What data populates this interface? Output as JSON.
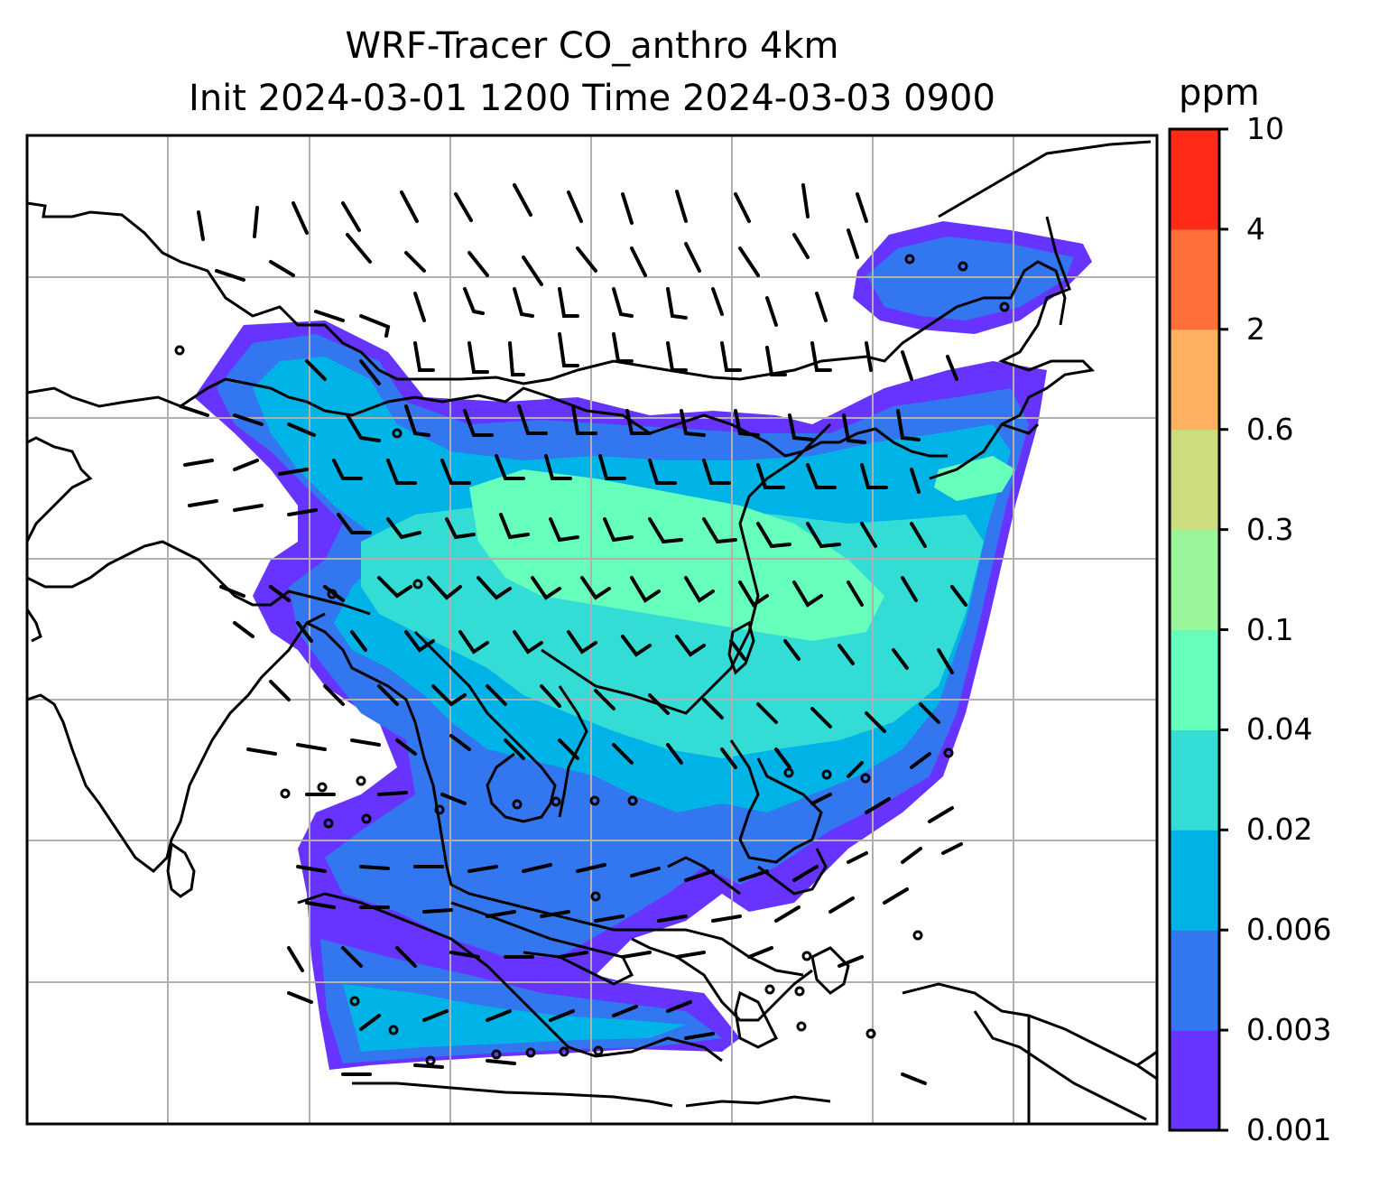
{
  "title": {
    "line1": "WRF-Tracer CO_anthro 4km",
    "line2": "Init 2024-03-01 1200 Time 2024-03-03 0900"
  },
  "colorbar": {
    "unit": "ppm",
    "levels": [
      "0.001",
      "0.003",
      "0.006",
      "0.02",
      "0.04",
      "0.1",
      "0.3",
      "0.6",
      "2",
      "4",
      "10"
    ],
    "colors": [
      "#6633ff",
      "#3377f0",
      "#00b3e6",
      "#33ddd6",
      "#66ffbb",
      "#99f599",
      "#ccdd80",
      "#ffb060",
      "#ff7038",
      "#ff2a18"
    ]
  },
  "map": {
    "gridlines": true,
    "coastline_color": "#000000",
    "grid_color": "#b0b0b0"
  }
}
